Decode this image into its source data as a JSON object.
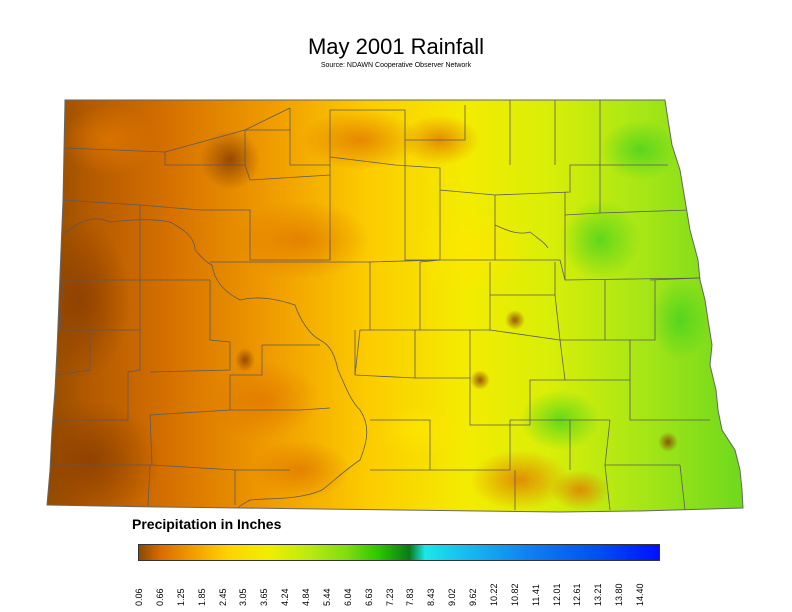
{
  "title": "May 2001 Rainfall",
  "subtitle": "Source: NDAWN Cooperative Observer Network",
  "legend": {
    "title": "Precipitation in Inches",
    "ticks": [
      "0.06",
      "0.66",
      "1.25",
      "1.85",
      "2.45",
      "3.05",
      "3.65",
      "4.24",
      "4.84",
      "5.44",
      "6.04",
      "6.63",
      "7.23",
      "7.83",
      "8.43",
      "9.02",
      "9.62",
      "10.22",
      "10.82",
      "11.41",
      "12.01",
      "12.61",
      "13.21",
      "13.80",
      "14.40"
    ],
    "colors": {
      "c0": "#8a4a00",
      "c1": "#d96a00",
      "c2": "#f29a00",
      "c3": "#ffd200",
      "c4": "#f0ee00",
      "c5": "#b8ea10",
      "c6": "#7fdc10",
      "c7": "#2cc800",
      "c8": "#0a7a1a",
      "c9": "#19e8e8",
      "c10": "#18c0f0",
      "c11": "#1080f0",
      "c12": "#0050f0",
      "c13": "#0010ff"
    }
  }
}
